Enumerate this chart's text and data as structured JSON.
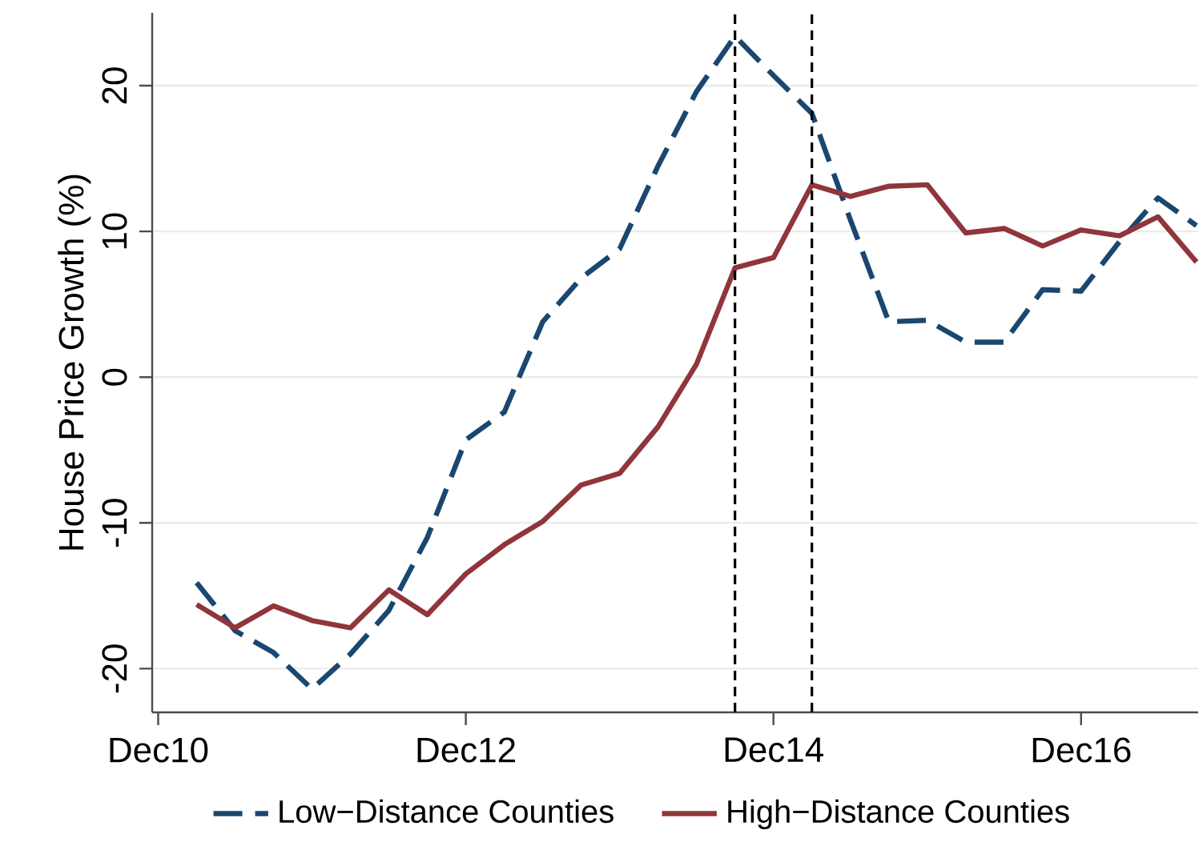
{
  "chart_data": {
    "type": "line",
    "ylabel": "House Price Growth (%)",
    "x": [
      "2011-03",
      "2011-06",
      "2011-09",
      "2011-12",
      "2012-03",
      "2012-06",
      "2012-09",
      "2012-12",
      "2013-03",
      "2013-06",
      "2013-09",
      "2013-12",
      "2014-03",
      "2014-06",
      "2014-09",
      "2014-12",
      "2015-03",
      "2015-06",
      "2015-09",
      "2015-12",
      "2016-03",
      "2016-06",
      "2016-09",
      "2016-12",
      "2017-03",
      "2017-06",
      "2017-09"
    ],
    "series": [
      {
        "name": "Low−Distance Counties",
        "color": "#1a476f",
        "line_style": "dashed",
        "values": [
          -14.1,
          -17.4,
          -18.9,
          -21.4,
          -19,
          -16,
          -11,
          -4.3,
          -2.4,
          3.8,
          6.8,
          8.8,
          14.5,
          19.6,
          23.4,
          20.7,
          18.1,
          10.8,
          3.8,
          3.9,
          2.4,
          2.4,
          6.0,
          5.9,
          9.3,
          12.3,
          10.4
        ]
      },
      {
        "name": "High−Distance Counties",
        "color": "#90353b",
        "line_style": "solid",
        "values": [
          -15.6,
          -17.2,
          -15.7,
          -16.7,
          -17.2,
          -14.6,
          -16.3,
          -13.5,
          -11.5,
          -9.9,
          -7.4,
          -6.6,
          -3.4,
          0.9,
          7.5,
          8.2,
          13.2,
          12.4,
          13.1,
          13.2,
          9.9,
          10.2,
          9.0,
          10.1,
          9.7,
          11.0,
          7.9
        ]
      }
    ],
    "xlim": [
      "2010-11-17",
      "2017-09-05"
    ],
    "ylim": [
      -23,
      25
    ],
    "xticks": [
      {
        "value": "2010-12",
        "label": "Dec10"
      },
      {
        "value": "2012-12",
        "label": "Dec12"
      },
      {
        "value": "2014-12",
        "label": "Dec14"
      },
      {
        "value": "2016-12",
        "label": "Dec16"
      }
    ],
    "yticks": [
      -20,
      -10,
      0,
      10,
      20
    ],
    "ref_lines": [
      {
        "axis": "x",
        "value": "2014-09",
        "color": "#000000",
        "line_style": "dashed"
      },
      {
        "axis": "x",
        "value": "2015-03",
        "color": "#000000",
        "line_style": "dashed"
      }
    ],
    "grid": "y",
    "legend": "bottom"
  }
}
